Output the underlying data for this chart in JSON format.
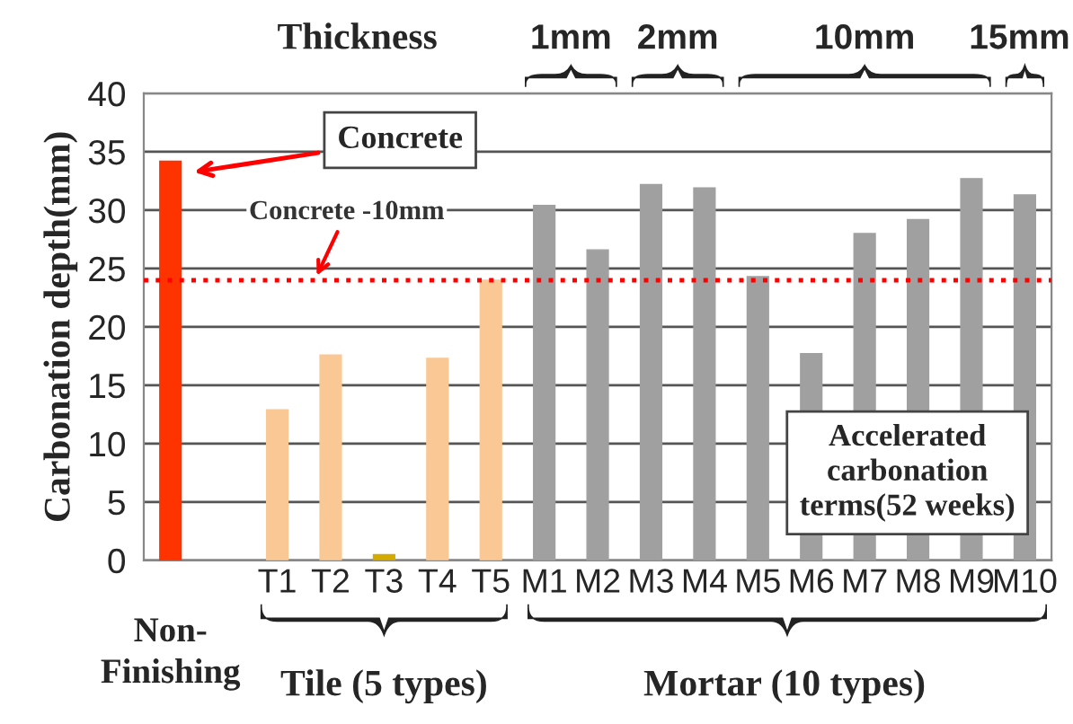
{
  "chart_data": {
    "type": "bar",
    "ylabel": "Carbonation depth(mm)",
    "categories": [
      "Non-\nFinishing",
      null,
      "T1",
      "T2",
      "T3",
      "T4",
      "T5",
      "M1",
      "M2",
      "M3",
      "M4",
      "M5",
      "M6",
      "M7",
      "M8",
      "M9",
      "M10"
    ],
    "values": [
      34.2,
      null,
      12.9,
      17.6,
      0.5,
      17.3,
      24.0,
      30.4,
      26.6,
      32.2,
      31.9,
      24.3,
      17.7,
      28.0,
      29.2,
      32.7,
      31.3
    ],
    "colors": [
      "#ff3300",
      null,
      "#f9c894",
      "#f9c894",
      "#d4aa00",
      "#f9c894",
      "#f9c894",
      "#a0a0a0",
      "#a0a0a0",
      "#a0a0a0",
      "#a0a0a0",
      "#a0a0a0",
      "#a0a0a0",
      "#a0a0a0",
      "#a0a0a0",
      "#a0a0a0",
      "#a0a0a0"
    ],
    "ylim": [
      0,
      40
    ],
    "yticks": [
      0,
      5,
      10,
      15,
      20,
      25,
      30,
      35,
      40
    ],
    "grid": "y",
    "ref_lines": [
      {
        "axis": "y",
        "value": 24,
        "label": "Concrete -10mm",
        "color": "#ff0000",
        "line_style": "dotted"
      }
    ],
    "annotations": [
      "Thickness",
      "1mm",
      "2mm",
      "10mm",
      "15mm",
      "Concrete",
      "Tile (5 types)",
      "Mortar (10 types)",
      "Accelerated\ncarbonation\nterms(52 weeks)"
    ]
  }
}
